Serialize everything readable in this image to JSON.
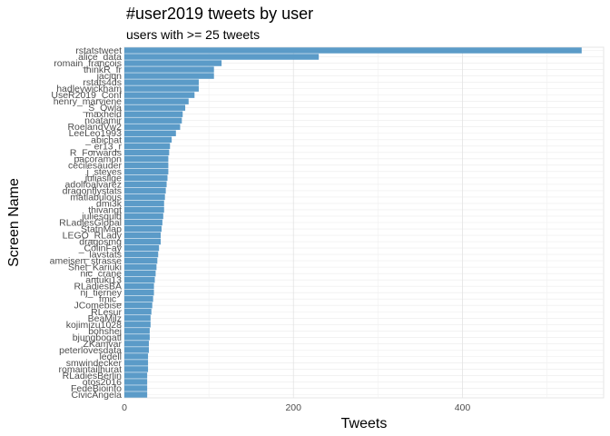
{
  "chart_data": {
    "type": "bar",
    "orientation": "horizontal",
    "title": "#user2019 tweets by user",
    "subtitle": "users with >= 25 tweets",
    "xlabel": "Tweets",
    "ylabel": "Screen Name",
    "xlim": [
      0,
      567
    ],
    "x_ticks": [
      0,
      200,
      400
    ],
    "grid": true,
    "bar_color": "#5b9bc8",
    "categories": [
      "rstatstweet",
      "alice_data",
      "romain_francois",
      "thinkR_fr",
      "jaciqn",
      "rstats4ds",
      "hadleywickham",
      "UseR2019_Conf",
      "henry_marviene",
      "_S_Owla",
      "maxheld",
      "noatamir",
      "RoelandVw2",
      "LeeLeo1993",
      "_abichat",
      "_er13_r",
      "R_Forwards",
      "pacoramon",
      "cecilesauder",
      "j_steyes",
      "juliasilge",
      "adolfoalvarez",
      "dragonflystats",
      "matlabulous",
      "dmi3k",
      "thivangt",
      "juliesquid",
      "RLadiesGlobal",
      "StatnMap",
      "LEGO_RLady",
      "dragosmg",
      "_ColinFay",
      "_lavstats",
      "ameisen_strasse",
      "Shel_Kariuki",
      "nic_crane",
      "antuki13",
      "RLadiesBA",
      "nj_tierney",
      "fmic_",
      "JComebise",
      "RLesur",
      "BeaMilz",
      "kojimizu1028",
      "bohshej",
      "bjungbogatl",
      "ZKamvar",
      "peterlovesdata",
      "ledell",
      "smwindecker",
      "romaintailhurat",
      "RLadiesBerlin",
      "otos2016",
      "FedeBioinfo",
      "CivicAngela"
    ],
    "values": [
      541,
      230,
      115,
      106,
      106,
      88,
      88,
      83,
      76,
      72,
      69,
      68,
      66,
      61,
      56,
      54,
      53,
      52,
      52,
      52,
      51,
      50,
      49,
      48,
      47,
      47,
      46,
      45,
      44,
      43,
      43,
      41,
      40,
      39,
      38,
      37,
      36,
      35,
      35,
      34,
      33,
      32,
      31,
      31,
      30,
      30,
      29,
      29,
      28,
      28,
      28,
      27,
      27,
      27,
      27
    ]
  }
}
